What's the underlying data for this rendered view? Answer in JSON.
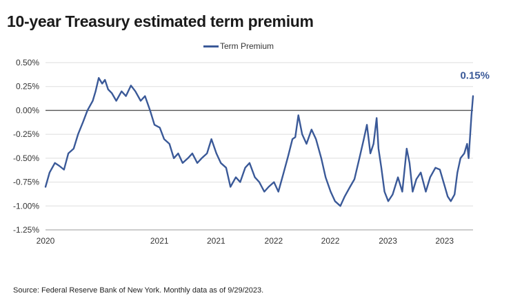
{
  "title": "10-year Treasury estimated term premium",
  "source": "Source: Federal Reserve Bank of New York. Monthly data as of 9/29/2023.",
  "colors": {
    "series": "#3a5998",
    "zero_line": "#555555",
    "grid": "#dddddd"
  },
  "chart_data": {
    "type": "line",
    "title": "10-year Treasury estimated term premium",
    "legend": {
      "position": "top-center",
      "entries": [
        "Term Premium"
      ]
    },
    "grid": true,
    "ylim": [
      -1.25,
      0.5
    ],
    "y_ticks": [
      {
        "value": 0.5,
        "label": "0.50%"
      },
      {
        "value": 0.25,
        "label": "0.25%"
      },
      {
        "value": 0.0,
        "label": "0.00%"
      },
      {
        "value": -0.25,
        "label": "-0.25%"
      },
      {
        "value": -0.5,
        "label": "-0.50%"
      },
      {
        "value": -0.75,
        "label": "-0.75%"
      },
      {
        "value": -1.0,
        "label": "-1.00%"
      },
      {
        "value": -1.25,
        "label": "-1.25%"
      }
    ],
    "xlim": [
      "2020-01-02",
      "2023-09-29"
    ],
    "x_ticks": [
      {
        "date": "2020-01-02",
        "label": "2020"
      },
      {
        "date": "2020-12-31",
        "label": "2021"
      },
      {
        "date": "2021-06-30",
        "label": "2021"
      },
      {
        "date": "2021-12-31",
        "label": "2022"
      },
      {
        "date": "2022-06-30",
        "label": "2022"
      },
      {
        "date": "2022-12-31",
        "label": "2023"
      },
      {
        "date": "2023-06-30",
        "label": "2023"
      }
    ],
    "end_label": "0.15%",
    "series": [
      {
        "name": "Term Premium",
        "points": [
          [
            "2020-01-02",
            -0.8
          ],
          [
            "2020-01-15",
            -0.65
          ],
          [
            "2020-02-01",
            -0.55
          ],
          [
            "2020-02-15",
            -0.58
          ],
          [
            "2020-03-01",
            -0.62
          ],
          [
            "2020-03-15",
            -0.45
          ],
          [
            "2020-04-01",
            -0.4
          ],
          [
            "2020-04-15",
            -0.25
          ],
          [
            "2020-05-01",
            -0.12
          ],
          [
            "2020-05-15",
            0.0
          ],
          [
            "2020-06-01",
            0.1
          ],
          [
            "2020-06-10",
            0.2
          ],
          [
            "2020-06-20",
            0.34
          ],
          [
            "2020-07-01",
            0.28
          ],
          [
            "2020-07-10",
            0.32
          ],
          [
            "2020-07-20",
            0.22
          ],
          [
            "2020-08-01",
            0.18
          ],
          [
            "2020-08-15",
            0.1
          ],
          [
            "2020-09-01",
            0.2
          ],
          [
            "2020-09-15",
            0.15
          ],
          [
            "2020-10-01",
            0.26
          ],
          [
            "2020-10-15",
            0.2
          ],
          [
            "2020-11-01",
            0.1
          ],
          [
            "2020-11-15",
            0.15
          ],
          [
            "2020-12-01",
            0.0
          ],
          [
            "2020-12-15",
            -0.15
          ],
          [
            "2021-01-01",
            -0.18
          ],
          [
            "2021-01-15",
            -0.3
          ],
          [
            "2021-02-01",
            -0.35
          ],
          [
            "2021-02-15",
            -0.5
          ],
          [
            "2021-03-01",
            -0.45
          ],
          [
            "2021-03-15",
            -0.55
          ],
          [
            "2021-04-01",
            -0.5
          ],
          [
            "2021-04-15",
            -0.45
          ],
          [
            "2021-05-01",
            -0.55
          ],
          [
            "2021-05-15",
            -0.5
          ],
          [
            "2021-06-01",
            -0.45
          ],
          [
            "2021-06-15",
            -0.3
          ],
          [
            "2021-07-01",
            -0.45
          ],
          [
            "2021-07-15",
            -0.55
          ],
          [
            "2021-08-01",
            -0.6
          ],
          [
            "2021-08-15",
            -0.8
          ],
          [
            "2021-09-01",
            -0.7
          ],
          [
            "2021-09-15",
            -0.75
          ],
          [
            "2021-10-01",
            -0.6
          ],
          [
            "2021-10-15",
            -0.55
          ],
          [
            "2021-11-01",
            -0.7
          ],
          [
            "2021-11-15",
            -0.75
          ],
          [
            "2021-12-01",
            -0.85
          ],
          [
            "2021-12-15",
            -0.8
          ],
          [
            "2022-01-01",
            -0.75
          ],
          [
            "2022-01-15",
            -0.85
          ],
          [
            "2022-02-01",
            -0.65
          ],
          [
            "2022-02-15",
            -0.48
          ],
          [
            "2022-03-01",
            -0.3
          ],
          [
            "2022-03-10",
            -0.28
          ],
          [
            "2022-03-20",
            -0.05
          ],
          [
            "2022-04-01",
            -0.25
          ],
          [
            "2022-04-15",
            -0.35
          ],
          [
            "2022-05-01",
            -0.2
          ],
          [
            "2022-05-15",
            -0.3
          ],
          [
            "2022-06-01",
            -0.5
          ],
          [
            "2022-06-15",
            -0.7
          ],
          [
            "2022-07-01",
            -0.85
          ],
          [
            "2022-07-15",
            -0.95
          ],
          [
            "2022-08-01",
            -1.0
          ],
          [
            "2022-08-15",
            -0.9
          ],
          [
            "2022-09-01",
            -0.8
          ],
          [
            "2022-09-15",
            -0.72
          ],
          [
            "2022-10-01",
            -0.5
          ],
          [
            "2022-10-15",
            -0.3
          ],
          [
            "2022-10-25",
            -0.15
          ],
          [
            "2022-11-05",
            -0.45
          ],
          [
            "2022-11-15",
            -0.35
          ],
          [
            "2022-11-25",
            -0.08
          ],
          [
            "2022-12-01",
            -0.4
          ],
          [
            "2022-12-10",
            -0.6
          ],
          [
            "2022-12-20",
            -0.85
          ],
          [
            "2023-01-01",
            -0.95
          ],
          [
            "2023-01-15",
            -0.88
          ],
          [
            "2023-02-01",
            -0.7
          ],
          [
            "2023-02-15",
            -0.85
          ],
          [
            "2023-03-01",
            -0.4
          ],
          [
            "2023-03-10",
            -0.55
          ],
          [
            "2023-03-20",
            -0.85
          ],
          [
            "2023-04-01",
            -0.72
          ],
          [
            "2023-04-15",
            -0.65
          ],
          [
            "2023-05-01",
            -0.85
          ],
          [
            "2023-05-15",
            -0.7
          ],
          [
            "2023-06-01",
            -0.6
          ],
          [
            "2023-06-15",
            -0.62
          ],
          [
            "2023-07-01",
            -0.8
          ],
          [
            "2023-07-10",
            -0.9
          ],
          [
            "2023-07-20",
            -0.95
          ],
          [
            "2023-08-01",
            -0.88
          ],
          [
            "2023-08-10",
            -0.65
          ],
          [
            "2023-08-20",
            -0.5
          ],
          [
            "2023-09-01",
            -0.45
          ],
          [
            "2023-09-10",
            -0.35
          ],
          [
            "2023-09-15",
            -0.5
          ],
          [
            "2023-09-20",
            -0.25
          ],
          [
            "2023-09-24",
            -0.05
          ],
          [
            "2023-09-29",
            0.15
          ]
        ]
      }
    ]
  }
}
